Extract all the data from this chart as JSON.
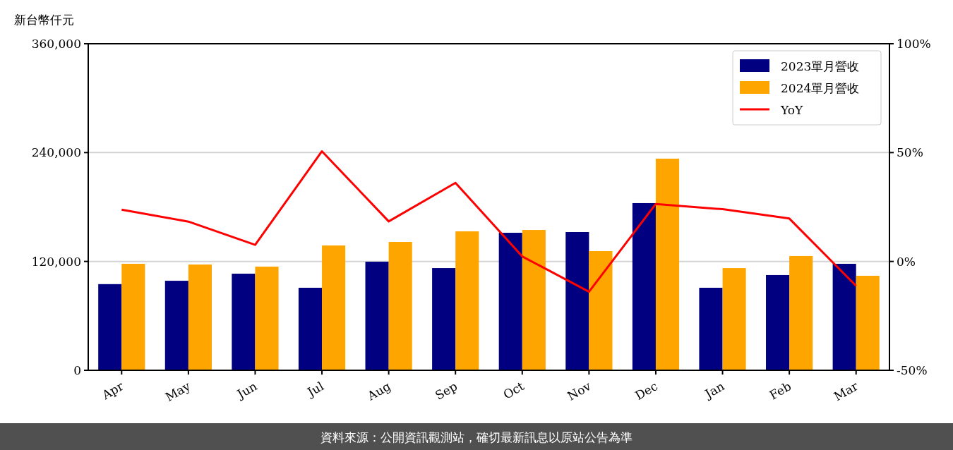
{
  "chart_data": {
    "type": "bar",
    "ylabel": "新台幣仟元",
    "categories": [
      "Apr",
      "May",
      "Jun",
      "Jul",
      "Aug",
      "Sep",
      "Oct",
      "Nov",
      "Dec",
      "Jan",
      "Feb",
      "Mar"
    ],
    "series": [
      {
        "name": "2023單月營收",
        "color": "#000080",
        "values": [
          95000,
          98700,
          106500,
          91000,
          119700,
          112700,
          151600,
          152400,
          184300,
          91000,
          105000,
          117400
        ]
      },
      {
        "name": "2024單月營收",
        "color": "#ffa500",
        "values": [
          117400,
          116600,
          114300,
          137600,
          141500,
          153200,
          154700,
          131400,
          233300,
          112700,
          126000,
          104200
        ]
      },
      {
        "name": "YoY",
        "type": "line",
        "axis": "y2",
        "color": "#ff0000",
        "values": [
          23.8,
          18.3,
          7.6,
          50.6,
          18.4,
          36.1,
          2.3,
          -13.9,
          26.4,
          24.0,
          19.7,
          -11.2
        ]
      }
    ],
    "ylim": [
      0,
      360000
    ],
    "yticks": [
      0,
      {
        "value": 120000,
        "label": "120,000"
      },
      {
        "value": 240000,
        "label": "240,000"
      },
      {
        "value": 360000,
        "label": "360,000"
      }
    ],
    "y2lim": [
      -50,
      100
    ],
    "y2ticks": [
      {
        "value": -50,
        "label": "-50%"
      },
      {
        "value": 0,
        "label": "0%"
      },
      {
        "value": 50,
        "label": "50%"
      },
      {
        "value": 100,
        "label": "100%"
      }
    ],
    "grid": "y",
    "legend": "top right",
    "line_style": "solid",
    "annotations": [
      "資料來源：公開資訊觀測站，確切最新訊息以原站公告為準"
    ]
  }
}
